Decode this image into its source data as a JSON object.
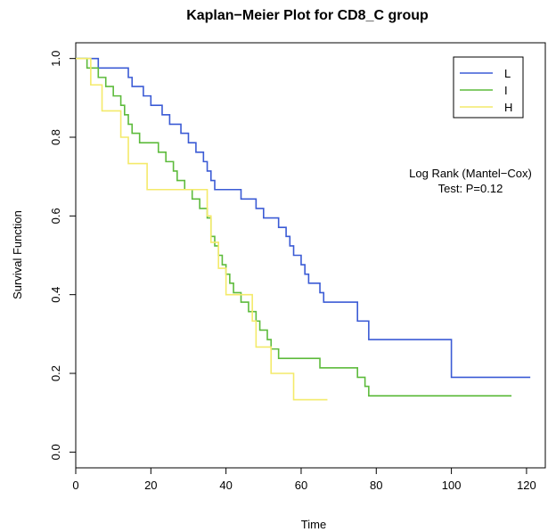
{
  "chart_data": {
    "type": "line",
    "title": "Kaplan−Meier Plot for CD8_C group",
    "xlabel": "Time",
    "ylabel": "Survival Function",
    "xlim": [
      0,
      125
    ],
    "ylim": [
      -0.04,
      1.04
    ],
    "x_ticks": [
      0,
      20,
      40,
      60,
      80,
      100,
      120
    ],
    "x_tick_labels": [
      "0",
      "20",
      "40",
      "60",
      "80",
      "100",
      "120"
    ],
    "y_ticks": [
      0.0,
      0.2,
      0.4,
      0.6,
      0.8,
      1.0
    ],
    "y_tick_labels": [
      "0.0",
      "0.2",
      "0.4",
      "0.6",
      "0.8",
      "1.0"
    ],
    "grid": false,
    "legend_position": "top-right",
    "annotation": [
      "Log Rank (Mantel−Cox)",
      "Test: P=0.12"
    ],
    "step": true,
    "series": [
      {
        "name": "L",
        "color": "#3b5bd5",
        "x": [
          0,
          6,
          14,
          15,
          18,
          20,
          23,
          25,
          28,
          30,
          32,
          34,
          35,
          36,
          37,
          44,
          48,
          50,
          54,
          56,
          57,
          58,
          60,
          61,
          62,
          65,
          66,
          75,
          78,
          100,
          121
        ],
        "y": [
          1.0,
          0.976,
          0.952,
          0.929,
          0.905,
          0.881,
          0.857,
          0.833,
          0.81,
          0.786,
          0.762,
          0.738,
          0.714,
          0.69,
          0.667,
          0.643,
          0.619,
          0.595,
          0.571,
          0.548,
          0.524,
          0.5,
          0.476,
          0.452,
          0.429,
          0.405,
          0.381,
          0.333,
          0.286,
          0.19,
          0.19
        ]
      },
      {
        "name": "I",
        "color": "#5dbb3c",
        "x": [
          0,
          3,
          6,
          8,
          10,
          12,
          13,
          14,
          15,
          17,
          22,
          24,
          26,
          27,
          29,
          31,
          33,
          35,
          36,
          37,
          38,
          39,
          40,
          41,
          42,
          44,
          46,
          48,
          49,
          51,
          52,
          54,
          65,
          75,
          77,
          78,
          116
        ],
        "y": [
          1.0,
          0.976,
          0.952,
          0.929,
          0.905,
          0.881,
          0.857,
          0.833,
          0.81,
          0.786,
          0.762,
          0.738,
          0.714,
          0.69,
          0.667,
          0.643,
          0.619,
          0.595,
          0.548,
          0.524,
          0.5,
          0.476,
          0.452,
          0.429,
          0.405,
          0.381,
          0.357,
          0.333,
          0.31,
          0.286,
          0.262,
          0.238,
          0.214,
          0.19,
          0.167,
          0.143,
          0.143
        ]
      },
      {
        "name": "H",
        "color": "#f4ea6a",
        "x": [
          0,
          4,
          7,
          12,
          14,
          19,
          35,
          36,
          38,
          40,
          47,
          48,
          52,
          58,
          67
        ],
        "y": [
          1.0,
          0.933,
          0.867,
          0.8,
          0.733,
          0.667,
          0.6,
          0.533,
          0.467,
          0.4,
          0.333,
          0.267,
          0.2,
          0.133,
          0.133
        ]
      }
    ]
  }
}
